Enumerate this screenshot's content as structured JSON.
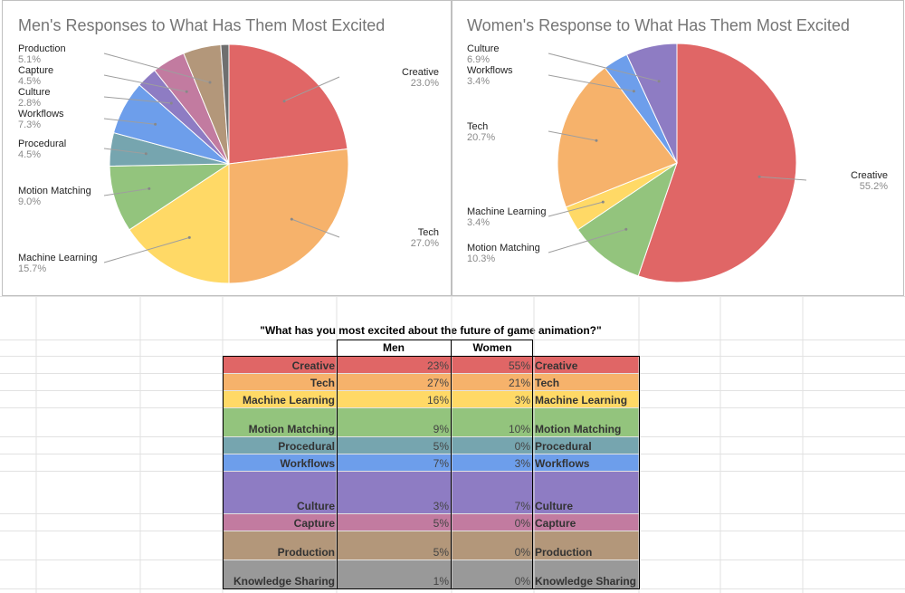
{
  "chart_data": [
    {
      "type": "pie",
      "title": "Men's Responses to What Has Them Most Excited",
      "slices": [
        {
          "label": "Creative",
          "value": 23.0,
          "pct_label": "23.0%",
          "color": "#e06666"
        },
        {
          "label": "Tech",
          "value": 27.0,
          "pct_label": "27.0%",
          "color": "#f6b26b"
        },
        {
          "label": "Machine Learning",
          "value": 15.7,
          "pct_label": "15.7%",
          "color": "#ffd966"
        },
        {
          "label": "Motion Matching",
          "value": 9.0,
          "pct_label": "9.0%",
          "color": "#93c47d"
        },
        {
          "label": "Procedural",
          "value": 4.5,
          "pct_label": "4.5%",
          "color": "#76a5af"
        },
        {
          "label": "Workflows",
          "value": 7.3,
          "pct_label": "7.3%",
          "color": "#6d9eeb"
        },
        {
          "label": "Culture",
          "value": 2.8,
          "pct_label": "2.8%",
          "color": "#8e7cc3"
        },
        {
          "label": "Capture",
          "value": 4.5,
          "pct_label": "4.5%",
          "color": "#c27ba0"
        },
        {
          "label": "Production",
          "value": 5.1,
          "pct_label": "5.1%",
          "color": "#b3977a"
        },
        {
          "label": "Knowledge Sharing",
          "value": 1.1,
          "pct_label": "",
          "color": "#6f6f6f"
        }
      ]
    },
    {
      "type": "pie",
      "title": "Women's Response to What Has Them Most Excited",
      "slices": [
        {
          "label": "Creative",
          "value": 55.2,
          "pct_label": "55.2%",
          "color": "#e06666"
        },
        {
          "label": "Motion Matching",
          "value": 10.3,
          "pct_label": "10.3%",
          "color": "#93c47d"
        },
        {
          "label": "Machine Learning",
          "value": 3.4,
          "pct_label": "3.4%",
          "color": "#ffd966"
        },
        {
          "label": "Tech",
          "value": 20.7,
          "pct_label": "20.7%",
          "color": "#f6b26b"
        },
        {
          "label": "Workflows",
          "value": 3.4,
          "pct_label": "3.4%",
          "color": "#6d9eeb"
        },
        {
          "label": "Culture",
          "value": 6.9,
          "pct_label": "6.9%",
          "color": "#8e7cc3"
        }
      ]
    }
  ],
  "table": {
    "question": "\"What has you most excited about the future of game animation?\"",
    "header_men": "Men",
    "header_women": "Women",
    "rows": [
      {
        "label": "Creative",
        "men": "23%",
        "women": "55%",
        "color": "#e06666"
      },
      {
        "label": "Tech",
        "men": "27%",
        "women": "21%",
        "color": "#f6b26b"
      },
      {
        "label": "Machine Learning",
        "men": "16%",
        "women": "3%",
        "color": "#ffd966"
      },
      {
        "label": "Motion Matching",
        "men": "9%",
        "women": "10%",
        "color": "#93c47d"
      },
      {
        "label": "Procedural",
        "men": "5%",
        "women": "0%",
        "color": "#76a5af"
      },
      {
        "label": "Workflows",
        "men": "7%",
        "women": "3%",
        "color": "#6d9eeb"
      },
      {
        "label": "Culture",
        "men": "3%",
        "women": "7%",
        "color": "#8e7cc3"
      },
      {
        "label": "Capture",
        "men": "5%",
        "women": "0%",
        "color": "#c27ba0"
      },
      {
        "label": "Production",
        "men": "5%",
        "women": "0%",
        "color": "#b3977a"
      },
      {
        "label": "Knowledge Sharing",
        "men": "1%",
        "women": "0%",
        "color": "#999999"
      }
    ]
  }
}
